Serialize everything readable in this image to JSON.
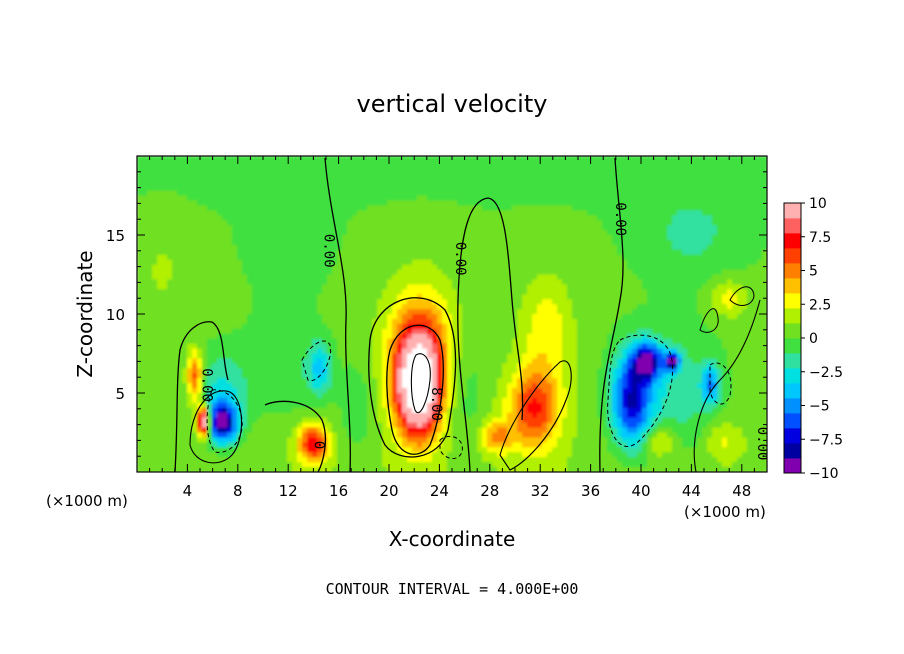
{
  "chart_data": {
    "type": "heatmap",
    "title": "vertical velocity",
    "xlabel": "X-coordinate",
    "ylabel": "Z-coordinate",
    "x_unit_left": "(×1000 m)",
    "x_unit_right": "(×1000 m)",
    "footer": "CONTOUR INTERVAL = 4.000E+00",
    "xlim": [
      0,
      50
    ],
    "ylim": [
      0,
      20
    ],
    "x_ticks": [
      4,
      8,
      12,
      16,
      20,
      24,
      28,
      32,
      36,
      40,
      44,
      48
    ],
    "y_ticks": [
      5,
      10,
      15
    ],
    "colorbar": {
      "ticks": [
        "10",
        "7.5",
        "5",
        "2.5",
        "0",
        "−2.5",
        "−5",
        "−7.5",
        "−10"
      ],
      "range": [
        -10,
        10
      ],
      "colors": [
        "#8000b0",
        "#0000a0",
        "#0000e0",
        "#0050ff",
        "#0090ff",
        "#00c8ff",
        "#00e0e0",
        "#30e0a0",
        "#40e040",
        "#70e020",
        "#b0f000",
        "#ffff00",
        "#ffc000",
        "#ff8000",
        "#ff4000",
        "#ff0000",
        "#ff6060",
        "#ffb0b0"
      ]
    },
    "contour_labels": [
      {
        "text": "0.00",
        "x": 14.9,
        "z": 14.0
      },
      {
        "text": "0.00",
        "x": 25.3,
        "z": 13.5
      },
      {
        "text": "0.00",
        "x": 38.0,
        "z": 16.0
      },
      {
        "text": "0.00",
        "x": 5.2,
        "z": 5.5
      },
      {
        "text": "0.00",
        "x": 49.3,
        "z": 1.8
      },
      {
        "text": "8.00",
        "x": 23.4,
        "z": 4.3
      },
      {
        "text": "0",
        "x": 14.1,
        "z": 1.7
      }
    ],
    "features": [
      {
        "x": 22.3,
        "z": 5.5,
        "sx": 1.6,
        "sz": 3.0,
        "value": 13
      },
      {
        "x": 22.5,
        "z": 7.5,
        "sx": 2.8,
        "sz": 4.5,
        "value": 5
      },
      {
        "x": 31.5,
        "z": 4.0,
        "sx": 2.0,
        "sz": 2.5,
        "value": 6
      },
      {
        "x": 28.5,
        "z": 2.2,
        "sx": 1.3,
        "sz": 1.0,
        "value": 4
      },
      {
        "x": 32.5,
        "z": 9.0,
        "sx": 2.0,
        "sz": 3.5,
        "value": 2.5
      },
      {
        "x": 14.0,
        "z": 1.8,
        "sx": 1.2,
        "sz": 1.2,
        "value": 7
      },
      {
        "x": 4.6,
        "z": 6.0,
        "sx": 0.6,
        "sz": 1.6,
        "value": 6
      },
      {
        "x": 5.3,
        "z": 3.2,
        "sx": 0.5,
        "sz": 0.9,
        "value": 13
      },
      {
        "x": 6.8,
        "z": 3.1,
        "sx": 1.2,
        "sz": 1.3,
        "value": -9
      },
      {
        "x": 6.6,
        "z": 5.0,
        "sx": 2.0,
        "sz": 2.5,
        "value": -3
      },
      {
        "x": 11.5,
        "z": 6.5,
        "sx": 3.5,
        "sz": 3.5,
        "value": -1.5
      },
      {
        "x": 14.5,
        "z": 6.5,
        "sx": 0.9,
        "sz": 1.6,
        "value": -4
      },
      {
        "x": 17.5,
        "z": 4.0,
        "sx": 1.5,
        "sz": 3.0,
        "value": -1.5
      },
      {
        "x": 26.0,
        "z": 5.0,
        "sx": 1.6,
        "sz": 4.0,
        "value": -1.5
      },
      {
        "x": 39.2,
        "z": 4.5,
        "sx": 1.6,
        "sz": 2.8,
        "value": -7.5
      },
      {
        "x": 40.5,
        "z": 7.0,
        "sx": 1.2,
        "sz": 1.2,
        "value": -8
      },
      {
        "x": 42.5,
        "z": 7.0,
        "sx": 0.6,
        "sz": 0.6,
        "value": -8
      },
      {
        "x": 45.5,
        "z": 5.5,
        "sx": 0.7,
        "sz": 1.2,
        "value": -5
      },
      {
        "x": 42.5,
        "z": 5.0,
        "sx": 4.0,
        "sz": 4.0,
        "value": -2.5
      },
      {
        "x": 41.5,
        "z": 2.0,
        "sx": 1.2,
        "sz": 1.0,
        "value": 3
      },
      {
        "x": 46.5,
        "z": 2.0,
        "sx": 1.4,
        "sz": 1.2,
        "value": 2
      },
      {
        "x": 47.0,
        "z": 11.0,
        "sx": 1.5,
        "sz": 1.2,
        "value": 2.5
      },
      {
        "x": 12.0,
        "z": 14.0,
        "sx": 3.0,
        "sz": 3.0,
        "value": -1
      },
      {
        "x": 44.0,
        "z": 15.0,
        "sx": 4.0,
        "sz": 3.0,
        "value": -1.5
      },
      {
        "x": 2.0,
        "z": 13.0,
        "sx": 2.0,
        "sz": 3.0,
        "value": 1
      }
    ]
  }
}
